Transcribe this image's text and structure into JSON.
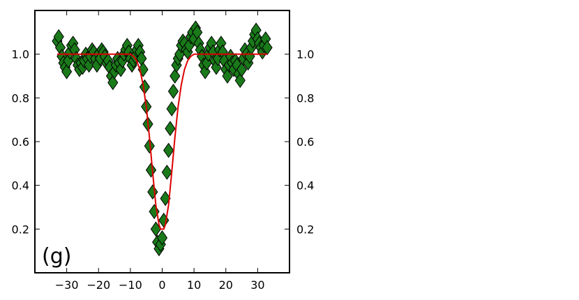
{
  "chart_data": {
    "type": "scatter",
    "panel_label": "(g)",
    "title": "",
    "xlabel": "",
    "ylabel": "",
    "xlim": [
      -40,
      40
    ],
    "ylim": [
      0,
      1.2
    ],
    "x_ticks": [
      -30,
      -20,
      -10,
      0,
      10,
      20,
      30
    ],
    "x_tick_labels": [
      "−30",
      "−20",
      "−10",
      "0",
      "10",
      "20",
      "30"
    ],
    "y_ticks": [
      0.2,
      0.4,
      0.6,
      0.8,
      1.0
    ],
    "y_tick_labels": [
      "0.2",
      "0.4",
      "0.6",
      "0.8",
      "1.0"
    ],
    "right_y_tick_labels": [
      "0.2",
      "0.4",
      "0.6",
      "0.8",
      "1.0"
    ],
    "grid": false,
    "legend": "none",
    "marker": "diamond",
    "marker_color": "#1a7a1a",
    "marker_edge_color": "#000000",
    "fit_color": "#dd0000",
    "series": [
      {
        "kind": "points",
        "x": [
          -33.0,
          -32.5,
          -32.0,
          -31.5,
          -31.0,
          -30.5,
          -30.0,
          -29.5,
          -29.0,
          -28.5,
          -28.0,
          -27.5,
          -27.0,
          -26.5,
          -26.0,
          -25.5,
          -25.0,
          -24.5,
          -24.0,
          -23.5,
          -23.0,
          -22.5,
          -22.0,
          -21.5,
          -21.0,
          -20.5,
          -20.0,
          -19.5,
          -19.0,
          -18.5,
          -18.0,
          -17.5,
          -17.0,
          -16.5,
          -16.0,
          -15.5,
          -15.0,
          -14.5,
          -14.0,
          -13.5,
          -13.0,
          -12.5,
          -12.0,
          -11.5,
          -11.0,
          -10.5,
          -10.0,
          -9.5,
          -9.0,
          -8.5,
          -8.0,
          -7.5,
          -7.0,
          -6.5,
          -6.0,
          -5.5,
          -5.0,
          -4.5,
          -4.0,
          -3.5,
          -3.0,
          -2.5,
          -2.0,
          -1.5,
          -1.0,
          -0.5,
          0.0,
          0.5,
          1.0,
          1.5,
          2.0,
          2.5,
          3.0,
          3.5,
          4.0,
          4.5,
          5.0,
          5.5,
          6.0,
          6.5,
          7.0,
          7.5,
          8.0,
          8.5,
          9.0,
          9.5,
          10.0,
          10.5,
          11.0,
          11.5,
          12.0,
          12.5,
          13.0,
          13.5,
          14.0,
          14.5,
          15.0,
          15.5,
          16.0,
          16.5,
          17.0,
          17.5,
          18.0,
          18.5,
          19.0,
          19.5,
          20.0,
          20.5,
          21.0,
          21.5,
          22.0,
          22.5,
          23.0,
          23.5,
          24.0,
          24.5,
          25.0,
          25.5,
          26.0,
          26.5,
          27.0,
          27.5,
          28.0,
          28.5,
          29.0,
          29.5,
          30.0,
          30.5,
          31.0,
          31.5,
          32.0,
          32.5,
          33.0
        ],
        "y": [
          1.06,
          1.08,
          1.03,
          0.99,
          0.96,
          0.94,
          0.92,
          0.97,
          1.01,
          1.04,
          1.05,
          1.02,
          0.98,
          0.95,
          0.93,
          0.96,
          0.94,
          0.97,
          1.0,
          0.98,
          0.95,
          0.99,
          1.02,
          1.01,
          0.98,
          0.95,
          1.0,
          0.98,
          1.02,
          1.01,
          0.99,
          0.96,
          0.97,
          0.94,
          0.9,
          0.87,
          0.92,
          0.95,
          0.98,
          0.96,
          0.93,
          0.97,
          1.0,
          1.02,
          1.04,
          1.01,
          0.98,
          0.95,
          0.97,
          0.99,
          1.02,
          1.04,
          1.01,
          0.98,
          0.93,
          0.85,
          0.76,
          0.68,
          0.58,
          0.47,
          0.37,
          0.28,
          0.2,
          0.14,
          0.11,
          0.13,
          0.16,
          0.24,
          0.34,
          0.46,
          0.56,
          0.66,
          0.75,
          0.83,
          0.9,
          0.95,
          0.98,
          1.0,
          1.04,
          1.06,
          1.05,
          1.02,
          1.01,
          1.04,
          1.08,
          1.1,
          1.07,
          1.12,
          1.1,
          1.05,
          1.02,
          0.99,
          0.95,
          0.92,
          0.96,
          1.0,
          1.03,
          1.05,
          1.01,
          0.97,
          0.94,
          0.98,
          1.02,
          1.05,
          1.01,
          0.97,
          0.93,
          0.9,
          0.95,
          0.99,
          0.96,
          0.93,
          0.97,
          0.95,
          0.91,
          0.88,
          0.93,
          0.98,
          1.02,
          1.0,
          0.96,
          0.99,
          1.03,
          1.06,
          1.09,
          1.11,
          1.07,
          1.05,
          1.03,
          1.01,
          1.04,
          1.07,
          1.03
        ]
      },
      {
        "kind": "fit",
        "x": [
          -33.0,
          -11.0,
          -10.0,
          -9.0,
          -8.0,
          -7.0,
          -6.0,
          -5.0,
          -4.0,
          -3.0,
          -2.0,
          -1.0,
          -0.5,
          0.0,
          0.5,
          1.0,
          2.0,
          3.0,
          4.0,
          5.0,
          6.0,
          7.0,
          8.0,
          9.0,
          10.0,
          33.0
        ],
        "y": [
          1.0,
          1.0,
          1.0,
          0.99,
          0.97,
          0.93,
          0.86,
          0.76,
          0.62,
          0.46,
          0.31,
          0.22,
          0.2,
          0.2,
          0.2,
          0.22,
          0.31,
          0.46,
          0.62,
          0.76,
          0.86,
          0.93,
          0.97,
          0.99,
          1.0,
          1.0
        ]
      }
    ]
  }
}
